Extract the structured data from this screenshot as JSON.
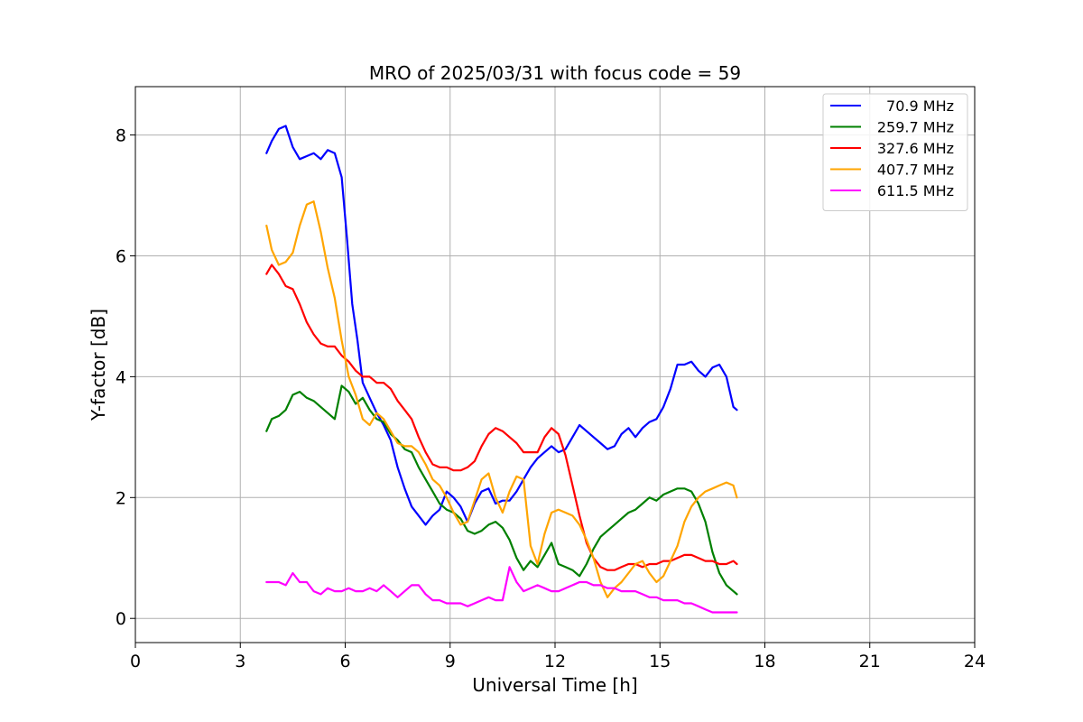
{
  "chart_data": {
    "type": "line",
    "title": "MRO of 2025/03/31 with focus code = 59",
    "xlabel": "Universal Time [h]",
    "ylabel": "Y-factor [dB]",
    "xlim": [
      0,
      24
    ],
    "ylim": [
      -0.4,
      8.8
    ],
    "xticks": [
      0,
      3,
      6,
      9,
      12,
      15,
      18,
      21,
      24
    ],
    "yticks": [
      0,
      2,
      4,
      6,
      8
    ],
    "grid": true,
    "legend_position": "top-right",
    "series": [
      {
        "name": "70.9 MHz",
        "color": "#0000ff",
        "x": [
          3.75,
          3.9,
          4.1,
          4.3,
          4.5,
          4.7,
          4.9,
          5.1,
          5.3,
          5.5,
          5.7,
          5.9,
          6.05,
          6.2,
          6.35,
          6.5,
          6.7,
          6.9,
          7.1,
          7.3,
          7.5,
          7.7,
          7.9,
          8.1,
          8.3,
          8.5,
          8.7,
          8.9,
          9.1,
          9.3,
          9.5,
          9.7,
          9.9,
          10.1,
          10.3,
          10.5,
          10.7,
          10.9,
          11.1,
          11.3,
          11.5,
          11.7,
          11.9,
          12.1,
          12.3,
          12.5,
          12.7,
          12.9,
          13.1,
          13.3,
          13.5,
          13.7,
          13.9,
          14.1,
          14.3,
          14.5,
          14.7,
          14.9,
          15.1,
          15.3,
          15.5,
          15.7,
          15.9,
          16.1,
          16.3,
          16.5,
          16.7,
          16.9,
          17.1,
          17.2
        ],
        "y": [
          7.7,
          7.9,
          8.1,
          8.15,
          7.8,
          7.6,
          7.65,
          7.7,
          7.6,
          7.75,
          7.7,
          7.3,
          6.3,
          5.2,
          4.6,
          3.9,
          3.65,
          3.4,
          3.2,
          2.95,
          2.5,
          2.15,
          1.85,
          1.7,
          1.55,
          1.7,
          1.8,
          2.1,
          2.0,
          1.85,
          1.6,
          1.9,
          2.1,
          2.15,
          1.9,
          1.95,
          1.95,
          2.1,
          2.3,
          2.5,
          2.65,
          2.75,
          2.85,
          2.75,
          2.8,
          3.0,
          3.2,
          3.1,
          3.0,
          2.9,
          2.8,
          2.85,
          3.05,
          3.15,
          3.0,
          3.15,
          3.25,
          3.3,
          3.5,
          3.8,
          4.2,
          4.2,
          4.25,
          4.1,
          4.0,
          4.15,
          4.2,
          4.0,
          3.5,
          3.45
        ]
      },
      {
        "name": "259.7 MHz",
        "color": "#008000",
        "x": [
          3.75,
          3.9,
          4.1,
          4.3,
          4.5,
          4.7,
          4.9,
          5.1,
          5.3,
          5.5,
          5.7,
          5.9,
          6.1,
          6.3,
          6.5,
          6.7,
          6.9,
          7.1,
          7.3,
          7.5,
          7.7,
          7.9,
          8.1,
          8.3,
          8.5,
          8.7,
          8.9,
          9.1,
          9.3,
          9.5,
          9.7,
          9.9,
          10.1,
          10.3,
          10.5,
          10.7,
          10.9,
          11.1,
          11.3,
          11.5,
          11.7,
          11.9,
          12.1,
          12.3,
          12.5,
          12.7,
          12.9,
          13.1,
          13.3,
          13.5,
          13.7,
          13.9,
          14.1,
          14.3,
          14.5,
          14.7,
          14.9,
          15.1,
          15.3,
          15.5,
          15.7,
          15.9,
          16.1,
          16.3,
          16.5,
          16.7,
          16.9,
          17.1,
          17.2
        ],
        "y": [
          3.1,
          3.3,
          3.35,
          3.45,
          3.7,
          3.75,
          3.65,
          3.6,
          3.5,
          3.4,
          3.3,
          3.85,
          3.75,
          3.55,
          3.65,
          3.45,
          3.3,
          3.25,
          3.05,
          2.95,
          2.8,
          2.75,
          2.5,
          2.3,
          2.1,
          1.9,
          1.8,
          1.75,
          1.65,
          1.45,
          1.4,
          1.45,
          1.55,
          1.6,
          1.5,
          1.3,
          1.0,
          0.8,
          0.95,
          0.85,
          1.05,
          1.25,
          0.9,
          0.85,
          0.8,
          0.7,
          0.9,
          1.15,
          1.35,
          1.45,
          1.55,
          1.65,
          1.75,
          1.8,
          1.9,
          2.0,
          1.95,
          2.05,
          2.1,
          2.15,
          2.15,
          2.1,
          1.9,
          1.6,
          1.1,
          0.75,
          0.55,
          0.45,
          0.4
        ]
      },
      {
        "name": "327.6 MHz",
        "color": "#ff0000",
        "x": [
          3.75,
          3.9,
          4.1,
          4.3,
          4.5,
          4.7,
          4.9,
          5.1,
          5.3,
          5.5,
          5.7,
          5.9,
          6.1,
          6.3,
          6.5,
          6.7,
          6.9,
          7.1,
          7.3,
          7.5,
          7.7,
          7.9,
          8.1,
          8.3,
          8.5,
          8.7,
          8.9,
          9.1,
          9.3,
          9.5,
          9.7,
          9.9,
          10.1,
          10.3,
          10.5,
          10.7,
          10.9,
          11.1,
          11.3,
          11.5,
          11.7,
          11.9,
          12.1,
          12.3,
          12.5,
          12.7,
          12.9,
          13.1,
          13.3,
          13.5,
          13.7,
          13.9,
          14.1,
          14.3,
          14.5,
          14.7,
          14.9,
          15.1,
          15.3,
          15.5,
          15.7,
          15.9,
          16.1,
          16.3,
          16.5,
          16.7,
          16.9,
          17.1,
          17.2
        ],
        "y": [
          5.7,
          5.85,
          5.7,
          5.5,
          5.45,
          5.2,
          4.9,
          4.7,
          4.55,
          4.5,
          4.5,
          4.35,
          4.25,
          4.1,
          4.0,
          4.0,
          3.9,
          3.9,
          3.8,
          3.6,
          3.45,
          3.3,
          3.0,
          2.75,
          2.55,
          2.5,
          2.5,
          2.45,
          2.45,
          2.5,
          2.6,
          2.85,
          3.05,
          3.15,
          3.1,
          3.0,
          2.9,
          2.75,
          2.75,
          2.75,
          3.0,
          3.15,
          3.05,
          2.7,
          2.2,
          1.7,
          1.25,
          1.0,
          0.85,
          0.8,
          0.8,
          0.85,
          0.9,
          0.9,
          0.85,
          0.9,
          0.9,
          0.95,
          0.95,
          1.0,
          1.05,
          1.05,
          1.0,
          0.95,
          0.95,
          0.9,
          0.9,
          0.95,
          0.9
        ]
      },
      {
        "name": "407.7 MHz",
        "color": "#ffa500",
        "x": [
          3.75,
          3.9,
          4.1,
          4.3,
          4.5,
          4.7,
          4.9,
          5.1,
          5.3,
          5.5,
          5.7,
          5.9,
          6.1,
          6.3,
          6.5,
          6.7,
          6.9,
          7.1,
          7.3,
          7.5,
          7.7,
          7.9,
          8.1,
          8.3,
          8.5,
          8.7,
          8.9,
          9.1,
          9.3,
          9.5,
          9.7,
          9.9,
          10.1,
          10.3,
          10.5,
          10.7,
          10.9,
          11.1,
          11.3,
          11.5,
          11.7,
          11.9,
          12.1,
          12.3,
          12.5,
          12.7,
          12.9,
          13.1,
          13.3,
          13.5,
          13.7,
          13.9,
          14.1,
          14.3,
          14.5,
          14.7,
          14.9,
          15.1,
          15.3,
          15.5,
          15.7,
          15.9,
          16.1,
          16.3,
          16.5,
          16.7,
          16.9,
          17.1,
          17.2
        ],
        "y": [
          6.5,
          6.1,
          5.85,
          5.9,
          6.05,
          6.5,
          6.85,
          6.9,
          6.4,
          5.8,
          5.3,
          4.6,
          4.0,
          3.7,
          3.3,
          3.2,
          3.4,
          3.3,
          3.1,
          2.9,
          2.85,
          2.85,
          2.75,
          2.55,
          2.3,
          2.2,
          2.0,
          1.75,
          1.55,
          1.6,
          1.95,
          2.3,
          2.4,
          2.0,
          1.75,
          2.1,
          2.35,
          2.3,
          1.2,
          0.9,
          1.4,
          1.75,
          1.8,
          1.75,
          1.7,
          1.55,
          1.3,
          1.0,
          0.6,
          0.35,
          0.5,
          0.6,
          0.75,
          0.9,
          0.95,
          0.75,
          0.6,
          0.7,
          0.95,
          1.2,
          1.6,
          1.85,
          2.0,
          2.1,
          2.15,
          2.2,
          2.25,
          2.2,
          2.0
        ]
      },
      {
        "name": "611.5 MHz",
        "color": "#ff00ff",
        "x": [
          3.75,
          3.9,
          4.1,
          4.3,
          4.5,
          4.7,
          4.9,
          5.1,
          5.3,
          5.5,
          5.7,
          5.9,
          6.1,
          6.3,
          6.5,
          6.7,
          6.9,
          7.1,
          7.3,
          7.5,
          7.7,
          7.9,
          8.1,
          8.3,
          8.5,
          8.7,
          8.9,
          9.1,
          9.3,
          9.5,
          9.7,
          9.9,
          10.1,
          10.3,
          10.5,
          10.7,
          10.9,
          11.1,
          11.3,
          11.5,
          11.7,
          11.9,
          12.1,
          12.3,
          12.5,
          12.7,
          12.9,
          13.1,
          13.3,
          13.5,
          13.7,
          13.9,
          14.1,
          14.3,
          14.5,
          14.7,
          14.9,
          15.1,
          15.3,
          15.5,
          15.7,
          15.9,
          16.1,
          16.3,
          16.5,
          16.7,
          16.9,
          17.1,
          17.2
        ],
        "y": [
          0.6,
          0.6,
          0.6,
          0.55,
          0.75,
          0.6,
          0.6,
          0.45,
          0.4,
          0.5,
          0.45,
          0.45,
          0.5,
          0.45,
          0.45,
          0.5,
          0.45,
          0.55,
          0.45,
          0.35,
          0.45,
          0.55,
          0.55,
          0.4,
          0.3,
          0.3,
          0.25,
          0.25,
          0.25,
          0.2,
          0.25,
          0.3,
          0.35,
          0.3,
          0.3,
          0.85,
          0.6,
          0.45,
          0.5,
          0.55,
          0.5,
          0.45,
          0.45,
          0.5,
          0.55,
          0.6,
          0.6,
          0.55,
          0.55,
          0.5,
          0.5,
          0.45,
          0.45,
          0.45,
          0.4,
          0.35,
          0.35,
          0.3,
          0.3,
          0.3,
          0.25,
          0.25,
          0.2,
          0.15,
          0.1,
          0.1,
          0.1,
          0.1,
          0.1
        ]
      }
    ]
  }
}
